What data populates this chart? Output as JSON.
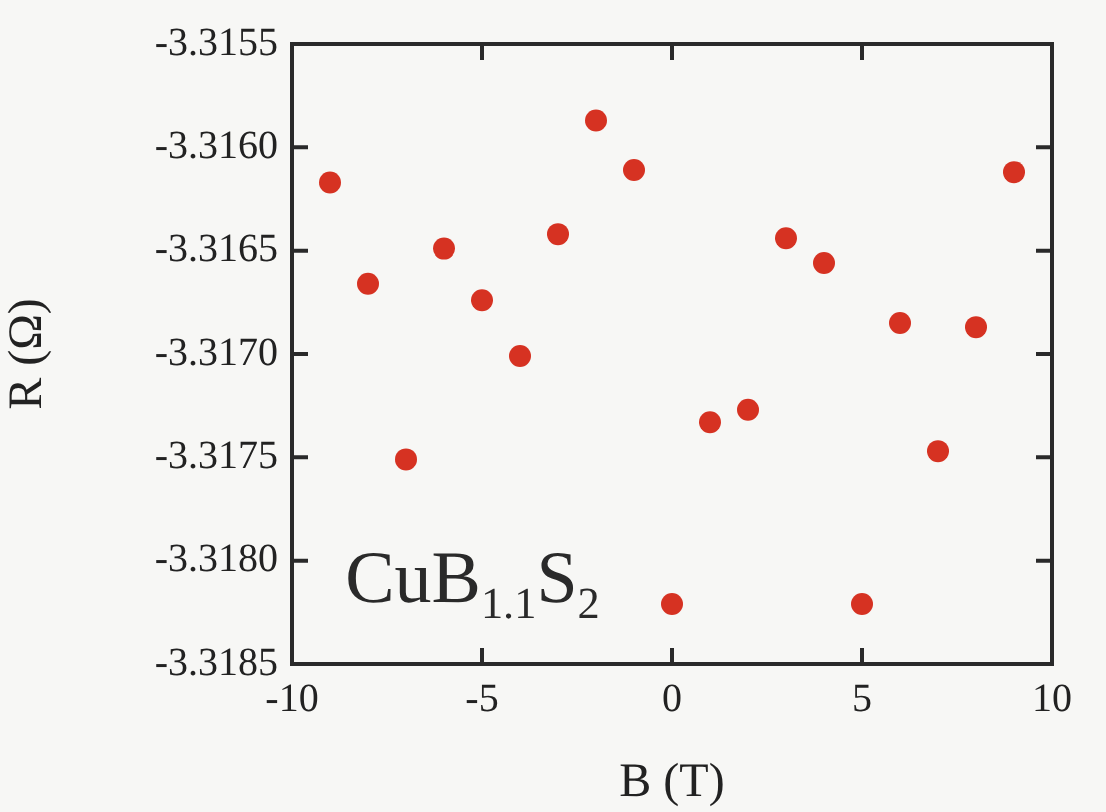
{
  "chart_data": {
    "type": "scatter",
    "xlabel": "B (T)",
    "ylabel": "R (Ω)",
    "annotations": [
      "CuB$_{1.1}$S$_{2}$"
    ],
    "x": [
      -9,
      -8,
      -7,
      -6,
      -5,
      -4,
      -3,
      -2,
      -1,
      0,
      1,
      2,
      3,
      4,
      5,
      6,
      7,
      8,
      9
    ],
    "values": [
      -3.31617,
      -3.31666,
      -3.31751,
      -3.31649,
      -3.31674,
      -3.31701,
      -3.31642,
      -3.31587,
      -3.31611,
      -3.31821,
      -3.31733,
      -3.31727,
      -3.31644,
      -3.31656,
      -3.31821,
      -3.31685,
      -3.31747,
      -3.31687,
      -3.31612
    ],
    "color": "#d63222",
    "marker": "circle",
    "xlim": [
      -10,
      10
    ],
    "xticks": [
      -10,
      -5,
      0,
      5,
      10
    ],
    "ylim": [
      -3.3185,
      -3.3155
    ],
    "yticks": [
      {
        "value": -3.3185,
        "label": "-3.3185"
      },
      {
        "value": -3.318,
        "label": "-3.3180"
      },
      {
        "value": -3.3175,
        "label": "-3.3175"
      },
      {
        "value": -3.317,
        "label": "-3.3170"
      },
      {
        "value": -3.3165,
        "label": "-3.3165"
      },
      {
        "value": -3.316,
        "label": "-3.3160"
      },
      {
        "value": -3.3155,
        "label": "-3.3155"
      }
    ]
  }
}
